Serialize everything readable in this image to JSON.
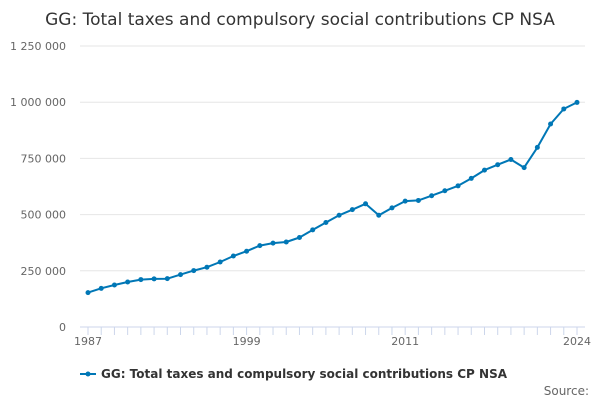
{
  "chart_data": {
    "type": "line",
    "title": "GG: Total taxes and compulsory social contributions CP NSA",
    "xlabel": "",
    "ylabel": "",
    "x": [
      1987,
      1988,
      1989,
      1990,
      1991,
      1992,
      1993,
      1994,
      1995,
      1996,
      1997,
      1998,
      1999,
      2000,
      2001,
      2002,
      2003,
      2004,
      2005,
      2006,
      2007,
      2008,
      2009,
      2010,
      2011,
      2012,
      2013,
      2014,
      2015,
      2016,
      2017,
      2018,
      2019,
      2020,
      2021,
      2022,
      2023,
      2024
    ],
    "series": [
      {
        "name": "GG: Total taxes and compulsory social contributions CP NSA",
        "color": "#0077b6",
        "values": [
          153000,
          172000,
          187000,
          200000,
          211000,
          214000,
          215000,
          233000,
          251000,
          266000,
          289000,
          316000,
          337000,
          362000,
          373000,
          378000,
          398000,
          432000,
          465000,
          497000,
          522000,
          548000,
          497000,
          530000,
          560000,
          563000,
          584000,
          606000,
          628000,
          661000,
          698000,
          722000,
          745000,
          709000,
          799000,
          903000,
          970000,
          999000
        ]
      }
    ],
    "xlim": [
      1987,
      2024
    ],
    "ylim": [
      0,
      1250000
    ],
    "x_ticks": [
      {
        "value": 1987,
        "label": "1987"
      },
      {
        "value": 1999,
        "label": "1999"
      },
      {
        "value": 2011,
        "label": "2011"
      },
      {
        "value": 2024,
        "label": "2024"
      }
    ],
    "y_ticks": [
      {
        "value": 0,
        "label": "0"
      },
      {
        "value": 250000,
        "label": "250 000"
      },
      {
        "value": 500000,
        "label": "500 000"
      },
      {
        "value": 750000,
        "label": "750 000"
      },
      {
        "value": 1000000,
        "label": "1 000 000"
      },
      {
        "value": 1250000,
        "label": "1 250 000"
      }
    ],
    "grid": true,
    "legend_position": "bottom",
    "source_label": "Source:"
  }
}
